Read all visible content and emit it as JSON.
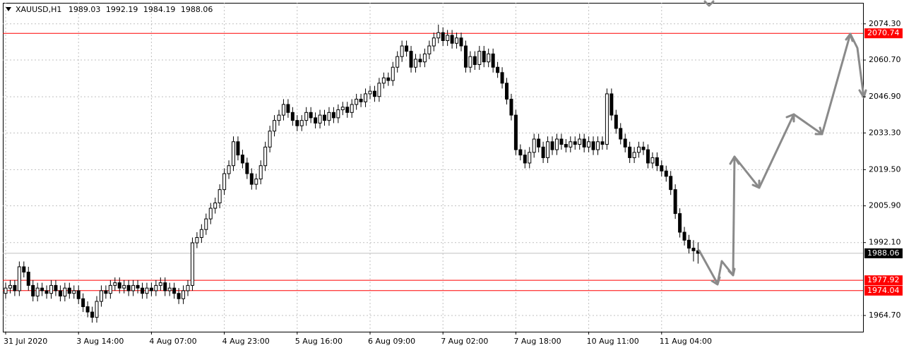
{
  "chart_data": {
    "type": "candlestick",
    "symbol": "XAUUSD,H1",
    "categories": [
      "31 Jul 2020",
      null,
      null,
      null,
      null,
      null,
      null,
      null,
      null,
      null,
      null,
      null,
      null,
      null,
      null,
      null,
      "3 Aug 14:00",
      null,
      null,
      null,
      null,
      null,
      null,
      null,
      null,
      null,
      null,
      null,
      null,
      null,
      null,
      null,
      "4 Aug 07:00",
      null,
      null,
      null,
      null,
      null,
      null,
      null,
      null,
      null,
      null,
      null,
      null,
      null,
      null,
      null,
      "4 Aug 23:00",
      null,
      null,
      null,
      null,
      null,
      null,
      null,
      null,
      null,
      null,
      null,
      null,
      null,
      null,
      null,
      "5 Aug 16:00",
      null,
      null,
      null,
      null,
      null,
      null,
      null,
      null,
      null,
      null,
      null,
      null,
      null,
      null,
      null,
      "6 Aug 09:00",
      null,
      null,
      null,
      null,
      null,
      null,
      null,
      null,
      null,
      null,
      null,
      null,
      null,
      null,
      null,
      "7 Aug 02:00",
      null,
      null,
      null,
      null,
      null,
      null,
      null,
      null,
      null,
      null,
      null,
      null,
      null,
      null,
      null,
      "7 Aug 18:00",
      null,
      null,
      null,
      null,
      null,
      null,
      null,
      null,
      null,
      null,
      null,
      null,
      null,
      null,
      null,
      "10 Aug 11:00",
      null,
      null,
      null,
      null,
      null,
      null,
      null,
      null,
      null,
      null,
      null,
      null,
      null,
      null,
      null,
      "11 Aug 04:00",
      null,
      null,
      null,
      null,
      null,
      null,
      null,
      null
    ],
    "open": [
      1973,
      1975,
      1976,
      1974,
      1983,
      1981,
      1976,
      1972,
      1975,
      1974,
      1973,
      1976,
      1974,
      1972,
      1975,
      1973,
      1974,
      1971,
      1968,
      1966,
      1964,
      1970,
      1974,
      1973,
      1976,
      1977,
      1975,
      1976,
      1974,
      1976,
      1975,
      1973,
      1975,
      1974,
      1976,
      1977,
      1974,
      1975,
      1973,
      1971,
      1974,
      1976,
      1992,
      1994,
      1997,
      2001,
      2005,
      2007,
      2012,
      2018,
      2021,
      2030,
      2025,
      2022,
      2018,
      2014,
      2016,
      2021,
      2028,
      2034,
      2038,
      2040,
      2044,
      2041,
      2038,
      2036,
      2038,
      2041,
      2039,
      2037,
      2040,
      2038,
      2041,
      2039,
      2042,
      2043,
      2041,
      2044,
      2046,
      2045,
      2048,
      2049,
      2047,
      2052,
      2054,
      2053,
      2058,
      2062,
      2066,
      2064,
      2058,
      2061,
      2060,
      2063,
      2066,
      2069,
      2071,
      2068,
      2070,
      2067,
      2069,
      2066,
      2058,
      2062,
      2059,
      2064,
      2060,
      2063,
      2058,
      2056,
      2052,
      2046,
      2040,
      2027,
      2025,
      2022,
      2026,
      2031,
      2028,
      2024,
      2030,
      2027,
      2031,
      2029,
      2028,
      2030,
      2029,
      2031,
      2028,
      2030,
      2027,
      2030,
      2029,
      2048,
      2040,
      2035,
      2031,
      2028,
      2024,
      2026,
      2028,
      2027,
      2022,
      2024,
      2021,
      2019,
      2017,
      2012,
      2003,
      1996,
      1993,
      1990,
      1989.03
    ],
    "high": [
      1977,
      1978,
      1978,
      1985,
      1985,
      1983,
      1978,
      1977,
      1977,
      1976,
      1978,
      1978,
      1976,
      1977,
      1977,
      1976,
      1976,
      1973,
      1970,
      1968,
      1972,
      1976,
      1976,
      1978,
      1979,
      1979,
      1978,
      1978,
      1978,
      1978,
      1977,
      1977,
      1977,
      1978,
      1979,
      1979,
      1977,
      1977,
      1975,
      1976,
      1978,
      1994,
      1996,
      1999,
      2003,
      2007,
      2009,
      2014,
      2020,
      2023,
      2032,
      2032,
      2027,
      2024,
      2020,
      2018,
      2023,
      2030,
      2036,
      2040,
      2042,
      2046,
      2046,
      2043,
      2040,
      2040,
      2043,
      2043,
      2041,
      2042,
      2042,
      2043,
      2043,
      2044,
      2045,
      2045,
      2046,
      2048,
      2048,
      2050,
      2051,
      2051,
      2054,
      2056,
      2056,
      2060,
      2064,
      2068,
      2068,
      2066,
      2063,
      2063,
      2065,
      2068,
      2071,
      2074,
      2073,
      2072,
      2072,
      2071,
      2071,
      2068,
      2064,
      2064,
      2066,
      2066,
      2065,
      2065,
      2060,
      2058,
      2054,
      2048,
      2042,
      2029,
      2027,
      2028,
      2033,
      2033,
      2030,
      2032,
      2032,
      2033,
      2033,
      2031,
      2032,
      2032,
      2033,
      2033,
      2032,
      2032,
      2032,
      2032,
      2050,
      2050,
      2042,
      2037,
      2033,
      2030,
      2028,
      2030,
      2030,
      2029,
      2026,
      2026,
      2023,
      2021,
      2019,
      2014,
      2005,
      1998,
      1995,
      1993,
      1992.19
    ],
    "low": [
      1971,
      1973,
      1972,
      1972,
      1979,
      1974,
      1970,
      1970,
      1972,
      1971,
      1971,
      1972,
      1970,
      1970,
      1971,
      1971,
      1969,
      1966,
      1964,
      1962,
      1962,
      1968,
      1971,
      1971,
      1974,
      1973,
      1973,
      1972,
      1972,
      1973,
      1971,
      1971,
      1972,
      1972,
      1974,
      1972,
      1972,
      1971,
      1969,
      1969,
      1972,
      1974,
      1990,
      1992,
      1995,
      1999,
      2003,
      2005,
      2010,
      2016,
      2019,
      2023,
      2020,
      2016,
      2012,
      2012,
      2014,
      2019,
      2026,
      2032,
      2036,
      2038,
      2039,
      2036,
      2034,
      2034,
      2036,
      2037,
      2035,
      2035,
      2036,
      2036,
      2037,
      2037,
      2040,
      2039,
      2039,
      2042,
      2043,
      2043,
      2046,
      2045,
      2045,
      2050,
      2051,
      2051,
      2056,
      2060,
      2062,
      2056,
      2056,
      2058,
      2058,
      2061,
      2064,
      2067,
      2066,
      2066,
      2065,
      2065,
      2064,
      2056,
      2056,
      2057,
      2057,
      2058,
      2058,
      2056,
      2054,
      2050,
      2044,
      2038,
      2025,
      2023,
      2020,
      2020,
      2024,
      2026,
      2022,
      2022,
      2025,
      2025,
      2027,
      2026,
      2026,
      2027,
      2027,
      2026,
      2026,
      2025,
      2025,
      2027,
      2027,
      2038,
      2033,
      2029,
      2026,
      2022,
      2022,
      2024,
      2025,
      2020,
      2020,
      2019,
      2017,
      2015,
      2010,
      2001,
      1994,
      1991,
      1988,
      1985,
      1984.19
    ],
    "close": [
      1975,
      1976,
      1974,
      1983,
      1981,
      1976,
      1972,
      1975,
      1974,
      1973,
      1976,
      1974,
      1972,
      1975,
      1973,
      1974,
      1971,
      1968,
      1966,
      1964,
      1970,
      1974,
      1973,
      1976,
      1977,
      1975,
      1976,
      1974,
      1976,
      1975,
      1973,
      1975,
      1974,
      1976,
      1977,
      1974,
      1975,
      1973,
      1971,
      1974,
      1976,
      1992,
      1994,
      1997,
      2001,
      2005,
      2007,
      2012,
      2018,
      2021,
      2030,
      2025,
      2022,
      2018,
      2014,
      2016,
      2021,
      2028,
      2034,
      2038,
      2040,
      2044,
      2041,
      2038,
      2036,
      2038,
      2041,
      2039,
      2037,
      2040,
      2038,
      2041,
      2039,
      2042,
      2043,
      2041,
      2044,
      2046,
      2045,
      2048,
      2049,
      2047,
      2052,
      2054,
      2053,
      2058,
      2062,
      2066,
      2064,
      2058,
      2061,
      2060,
      2063,
      2066,
      2069,
      2071,
      2068,
      2070,
      2067,
      2069,
      2066,
      2058,
      2062,
      2059,
      2064,
      2060,
      2063,
      2058,
      2056,
      2052,
      2046,
      2040,
      2027,
      2025,
      2022,
      2026,
      2031,
      2028,
      2024,
      2030,
      2027,
      2031,
      2029,
      2028,
      2030,
      2029,
      2031,
      2028,
      2030,
      2027,
      2030,
      2029,
      2048,
      2040,
      2035,
      2031,
      2028,
      2024,
      2026,
      2028,
      2027,
      2022,
      2024,
      2021,
      2019,
      2017,
      2012,
      2003,
      1996,
      1993,
      1990,
      1989.03,
      1988.06
    ],
    "ylim": [
      1958.6,
      2082.2
    ],
    "yticks": [
      {
        "value": 2074.3,
        "label": "2074.30"
      },
      {
        "value": 2060.7,
        "label": "2060.70"
      },
      {
        "value": 2046.9,
        "label": "2046.90"
      },
      {
        "value": 2033.3,
        "label": "2033.30"
      },
      {
        "value": 2019.5,
        "label": "2019.50"
      },
      {
        "value": 2005.9,
        "label": "2005.90"
      },
      {
        "value": 1992.1,
        "label": "1992.10"
      },
      {
        "value": 1964.7,
        "label": "1964.70"
      }
    ],
    "levels": [
      {
        "value": 2070.74,
        "color": "#ff0000"
      },
      {
        "value": 1977.92,
        "color": "#ff0000"
      },
      {
        "value": 1974.04,
        "color": "#ff0000"
      }
    ],
    "grid": true
  }
}
